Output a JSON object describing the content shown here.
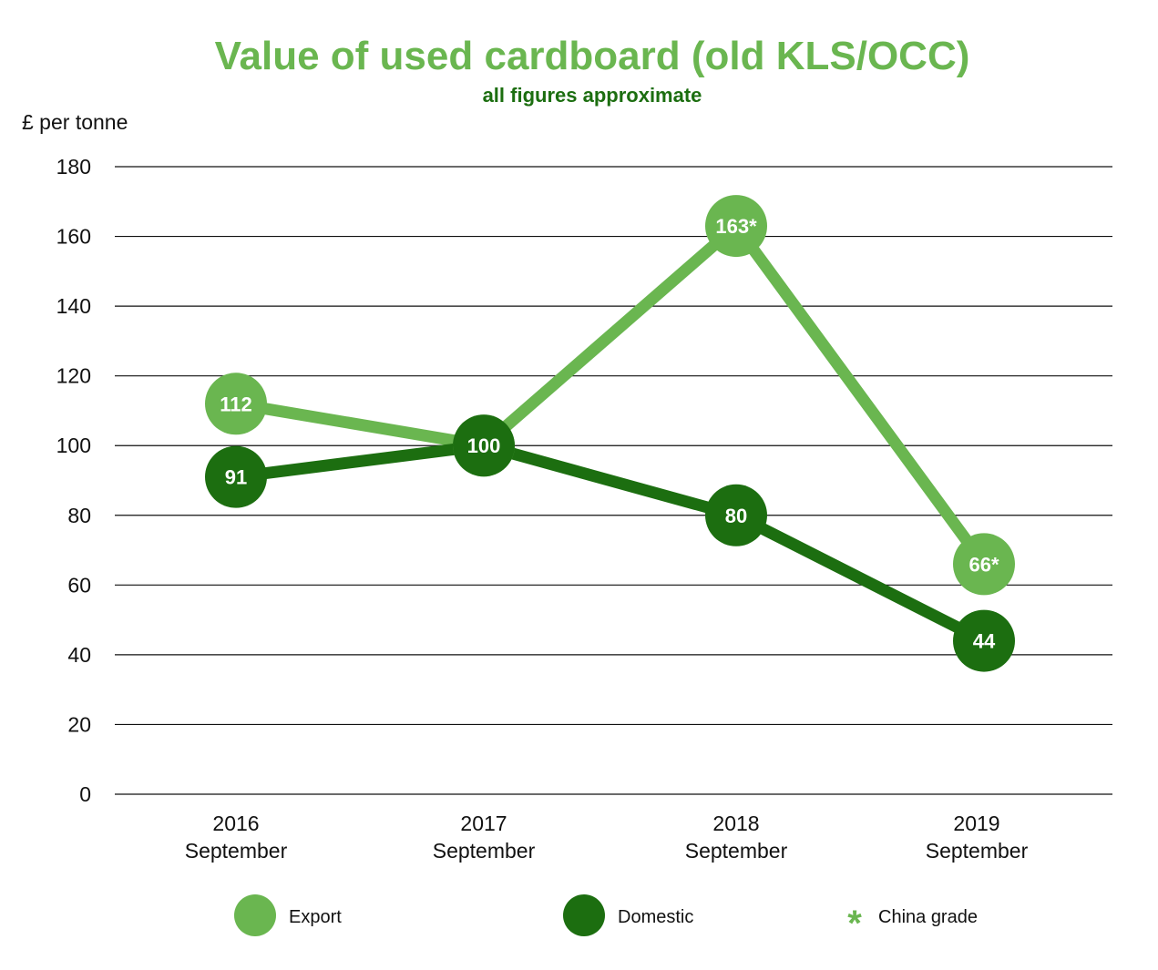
{
  "chart_data": {
    "type": "line",
    "title": "Value of used cardboard (old KLS/OCC)",
    "subtitle": "all figures approximate",
    "ylabel": "£ per tonne",
    "ylim": [
      0,
      180
    ],
    "yticks": [
      0,
      20,
      40,
      60,
      80,
      100,
      120,
      140,
      160,
      180
    ],
    "grid": true,
    "categories": [
      {
        "year": "2016",
        "month": "September"
      },
      {
        "year": "2017",
        "month": "September"
      },
      {
        "year": "2018",
        "month": "September"
      },
      {
        "year": "2019",
        "month": "September"
      }
    ],
    "series": [
      {
        "name": "Export",
        "color": "#6ab650",
        "values": [
          112,
          100,
          163,
          66
        ],
        "labels": [
          "112",
          "100",
          "163*",
          "66*"
        ]
      },
      {
        "name": "Domestic",
        "color": "#1c6e10",
        "values": [
          91,
          100,
          80,
          44
        ],
        "labels": [
          "91",
          "100",
          "80",
          "44"
        ]
      }
    ],
    "legend": {
      "placement": "bottom",
      "items": [
        {
          "label": "Export",
          "marker": "circle",
          "color": "#6ab650"
        },
        {
          "label": "Domestic",
          "marker": "circle",
          "color": "#1c6e10"
        },
        {
          "label": "China grade",
          "marker": "*",
          "color": "#6ab650"
        }
      ]
    }
  }
}
